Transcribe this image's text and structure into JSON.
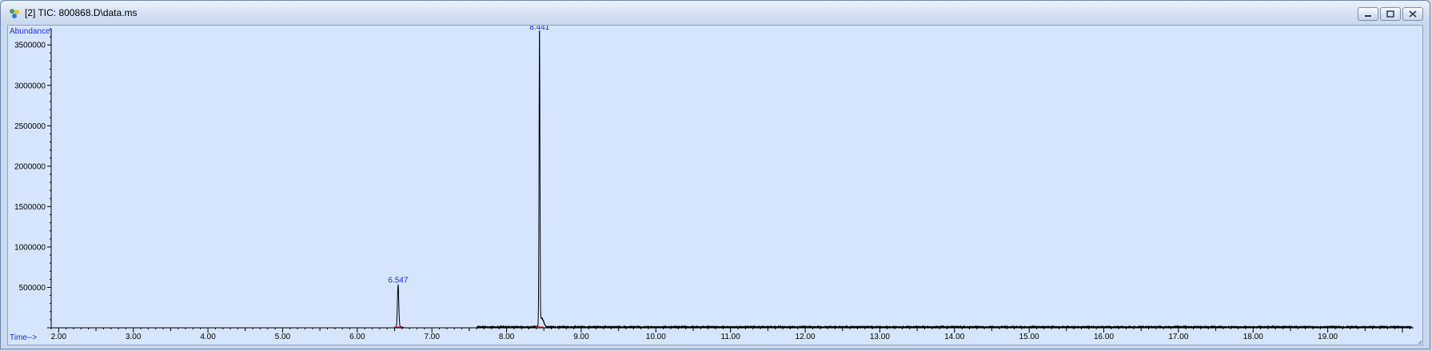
{
  "window": {
    "title": "[2] TIC: 800868.D\\data.ms",
    "icon": "chromatogram-app-icon",
    "buttons": [
      "minimize",
      "restore",
      "close"
    ]
  },
  "chart_data": {
    "type": "line",
    "ylabel": "Abundance",
    "xlabel": "Time-->",
    "xlim": [
      1.9,
      20.15
    ],
    "ylim": [
      0,
      3700000
    ],
    "x_ticks": [
      2.0,
      3.0,
      4.0,
      5.0,
      6.0,
      7.0,
      8.0,
      9.0,
      10.0,
      11.0,
      12.0,
      13.0,
      14.0,
      15.0,
      16.0,
      17.0,
      18.0,
      19.0
    ],
    "x_tick_labels": [
      "2.00",
      "3.00",
      "4.00",
      "5.00",
      "6.00",
      "7.00",
      "8.00",
      "9.00",
      "10.00",
      "11.00",
      "12.00",
      "13.00",
      "14.00",
      "15.00",
      "16.00",
      "17.00",
      "18.00",
      "19.00"
    ],
    "y_ticks": [
      500000,
      1000000,
      1500000,
      2000000,
      2500000,
      3000000,
      3500000
    ],
    "y_tick_labels": [
      "500000",
      "1000000",
      "1500000",
      "2000000",
      "2500000",
      "3000000",
      "3500000"
    ],
    "grid": false,
    "peaks": [
      {
        "rt": 6.547,
        "label": "6.547",
        "height": 520000
      },
      {
        "rt": 8.441,
        "label": "8.441",
        "height": 3650000
      }
    ],
    "baseline_start": 7.6,
    "colors": {
      "trace": "#000000",
      "labels": "#1a2cd6",
      "integration": "#d02020",
      "background": "#d6e5fd"
    }
  }
}
